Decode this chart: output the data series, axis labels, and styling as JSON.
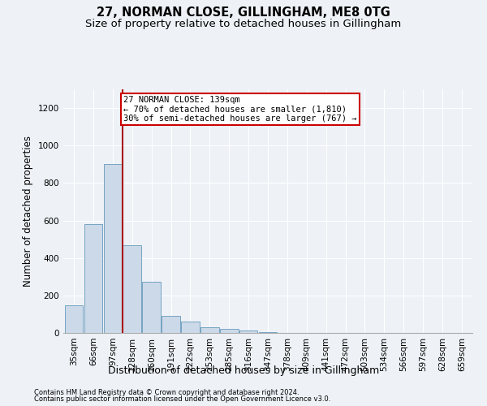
{
  "title": "27, NORMAN CLOSE, GILLINGHAM, ME8 0TG",
  "subtitle": "Size of property relative to detached houses in Gillingham",
  "xlabel": "Distribution of detached houses by size in Gillingham",
  "ylabel": "Number of detached properties",
  "footnote1": "Contains HM Land Registry data © Crown copyright and database right 2024.",
  "footnote2": "Contains public sector information licensed under the Open Government Licence v3.0.",
  "bins": [
    "35sqm",
    "66sqm",
    "97sqm",
    "128sqm",
    "160sqm",
    "191sqm",
    "222sqm",
    "253sqm",
    "285sqm",
    "316sqm",
    "347sqm",
    "378sqm",
    "409sqm",
    "441sqm",
    "472sqm",
    "503sqm",
    "534sqm",
    "566sqm",
    "597sqm",
    "628sqm",
    "659sqm"
  ],
  "values": [
    148,
    580,
    900,
    470,
    275,
    90,
    60,
    30,
    20,
    15,
    5,
    0,
    0,
    0,
    0,
    0,
    0,
    0,
    0,
    0,
    0
  ],
  "bar_color": "#ccd9e8",
  "bar_edge_color": "#6699bb",
  "vline_x": 2.5,
  "vline_color": "#aa1111",
  "annotation_text": "27 NORMAN CLOSE: 139sqm\n← 70% of detached houses are smaller (1,810)\n30% of semi-detached houses are larger (767) →",
  "annotation_box_facecolor": "#ffffff",
  "annotation_box_edgecolor": "#cc0000",
  "ylim": [
    0,
    1300
  ],
  "yticks": [
    0,
    200,
    400,
    600,
    800,
    1000,
    1200
  ],
  "bg_color": "#eef2f7",
  "grid_color": "#ffffff",
  "title_fontsize": 10.5,
  "subtitle_fontsize": 9.5,
  "annot_fontsize": 7.5,
  "ylabel_fontsize": 8.5,
  "xlabel_fontsize": 9,
  "tick_fontsize": 7.5,
  "footnote_fontsize": 6
}
